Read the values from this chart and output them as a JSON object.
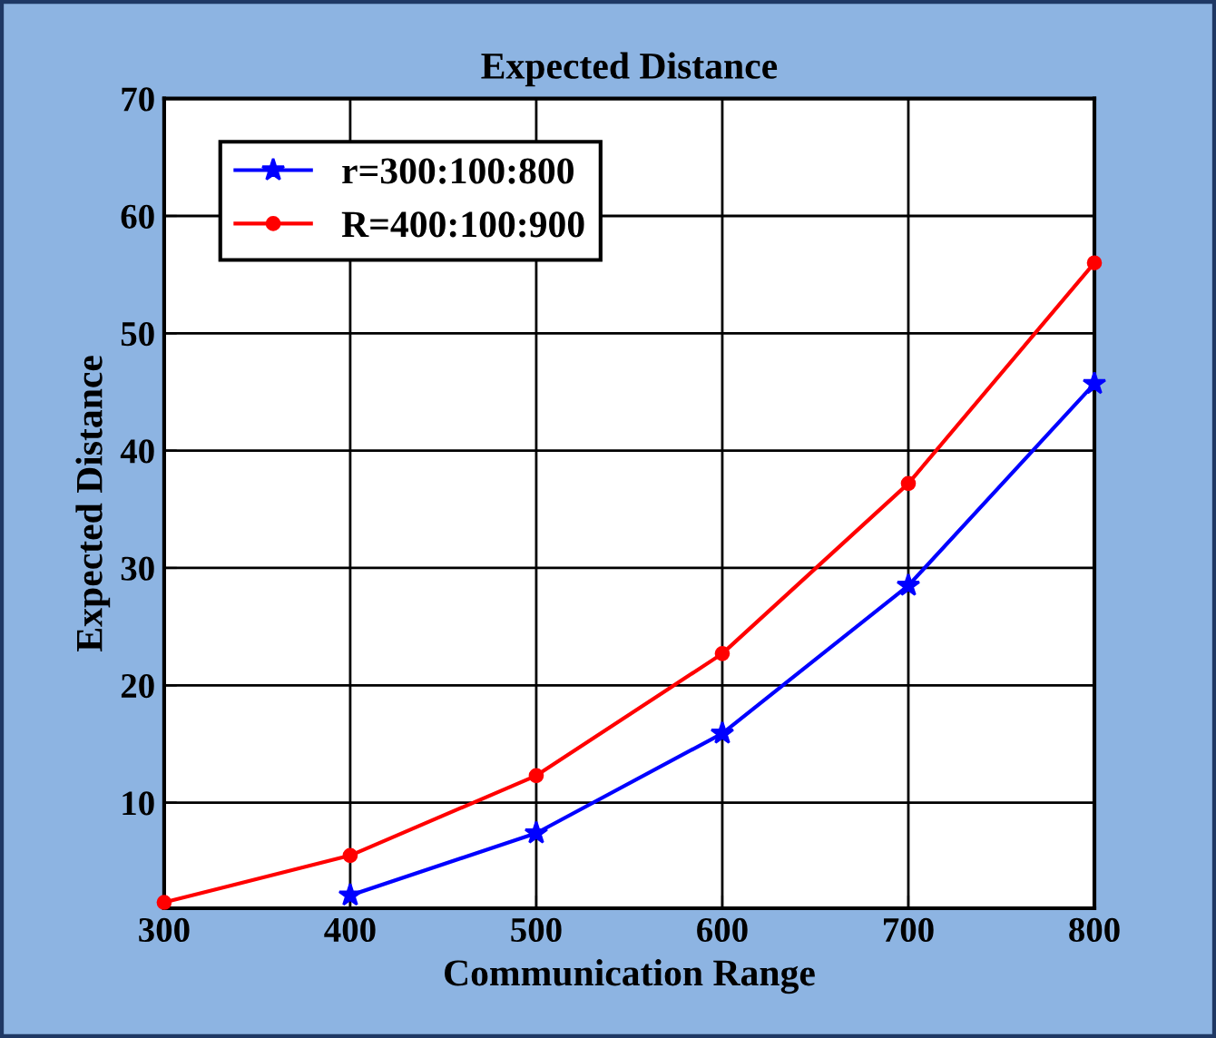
{
  "chart_data": {
    "type": "line",
    "title": "Expected Distance",
    "xlabel": "Communication Range",
    "ylabel": "Expected Distance",
    "xlim": [
      300,
      800
    ],
    "xticks": [
      300,
      400,
      500,
      600,
      700,
      800
    ],
    "ylim": [
      1,
      70
    ],
    "yticks": [
      10,
      20,
      30,
      40,
      50,
      60,
      70
    ],
    "grid": true,
    "legend": "top left",
    "line_style": "solid",
    "series": [
      {
        "name": "r=300:100:800",
        "color": "#0000ff",
        "marker": "star",
        "x": [
          400,
          500,
          600,
          700,
          800
        ],
        "values": [
          2.1,
          7.4,
          15.9,
          28.5,
          45.7
        ]
      },
      {
        "name": "R=400:100:900",
        "color": "#ff0000",
        "marker": "circle",
        "x": [
          300,
          400,
          500,
          600,
          700,
          800
        ],
        "values": [
          1.5,
          5.5,
          12.3,
          22.7,
          37.2,
          56.0
        ]
      }
    ]
  }
}
